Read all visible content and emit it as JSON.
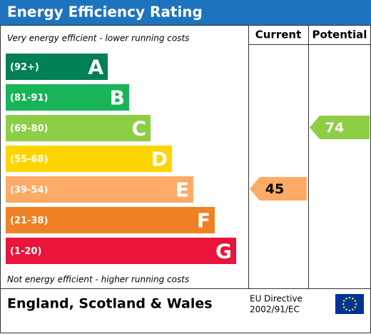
{
  "title": "Energy Efficiency Rating",
  "columns": [
    "Current",
    "Potential"
  ],
  "top_note": "Very energy efficient - lower running costs",
  "bottom_note": "Not energy efficient - higher running costs",
  "bands": [
    {
      "range": "(92+)",
      "letter": "A",
      "color": "#008054"
    },
    {
      "range": "(81-91)",
      "letter": "B",
      "color": "#19b459"
    },
    {
      "range": "(69-80)",
      "letter": "C",
      "color": "#8dce46"
    },
    {
      "range": "(55-68)",
      "letter": "D",
      "color": "#ffd500"
    },
    {
      "range": "(39-54)",
      "letter": "E",
      "color": "#fcaa65"
    },
    {
      "range": "(21-38)",
      "letter": "F",
      "color": "#ef8023"
    },
    {
      "range": "(1-20)",
      "letter": "G",
      "color": "#e9153b"
    }
  ],
  "current": 45,
  "potential": 74,
  "footer": {
    "region": "England, Scotland & Wales",
    "directive": [
      "EU Directive",
      "2002/91/EC"
    ]
  }
}
